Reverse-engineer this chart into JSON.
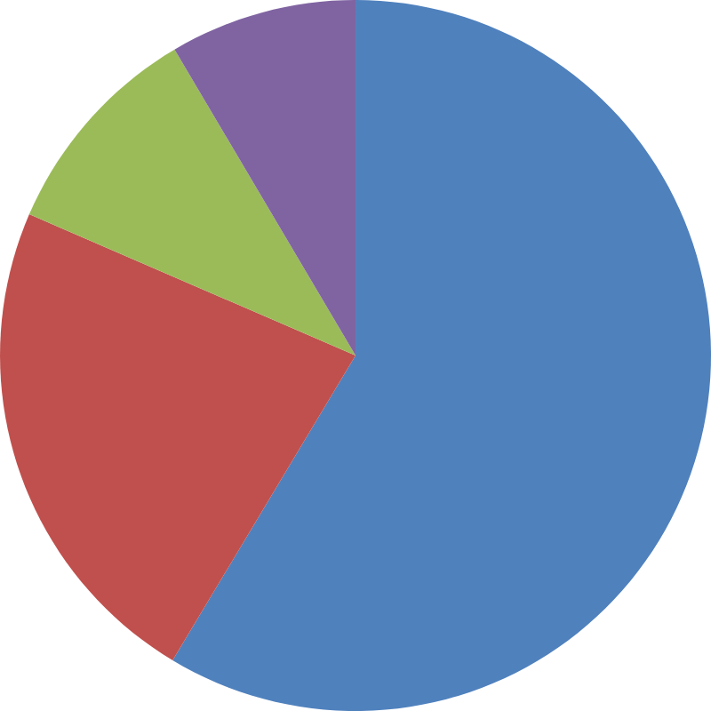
{
  "chart_data": {
    "type": "pie",
    "categories": [
      null,
      null,
      null,
      null
    ],
    "values": [
      58.6,
      22.9,
      10,
      8.5
    ],
    "colors": [
      "#4f81bd",
      "#c0504d",
      "#9bbb59",
      "#8064a2"
    ]
  }
}
